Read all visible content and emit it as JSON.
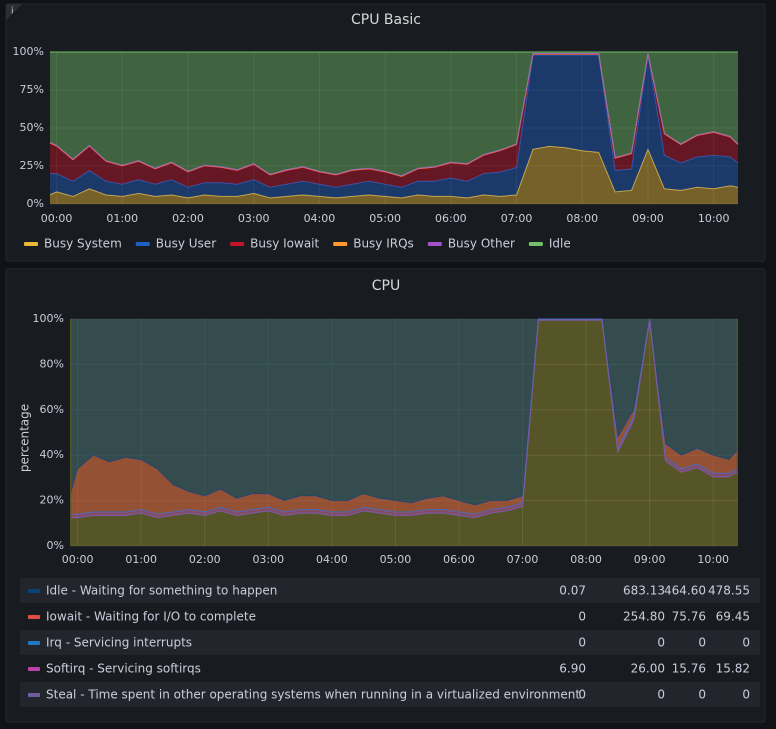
{
  "chart_data": [
    {
      "type": "area",
      "stacked": true,
      "stack_direction": "up",
      "title": "CPU Basic",
      "legend_position": "bottom",
      "x": [
        -0.1,
        0,
        0.25,
        0.5,
        0.75,
        1,
        1.25,
        1.5,
        1.75,
        2,
        2.25,
        2.5,
        2.75,
        3,
        3.25,
        3.5,
        3.75,
        4,
        4.25,
        4.5,
        4.75,
        5,
        5.25,
        5.5,
        5.75,
        6,
        6.25,
        6.5,
        6.75,
        7,
        7.25,
        7.5,
        7.75,
        8,
        8.25,
        8.5,
        8.75,
        9,
        9.25,
        9.5,
        9.75,
        10,
        10.25,
        10.37
      ],
      "xlim": [
        -0.1,
        10.37
      ],
      "xticks": [
        {
          "value": 0,
          "label": "00:00"
        },
        {
          "value": 1,
          "label": "01:00"
        },
        {
          "value": 2,
          "label": "02:00"
        },
        {
          "value": 3,
          "label": "03:00"
        },
        {
          "value": 4,
          "label": "04:00"
        },
        {
          "value": 5,
          "label": "05:00"
        },
        {
          "value": 6,
          "label": "06:00"
        },
        {
          "value": 7,
          "label": "07:00"
        },
        {
          "value": 8,
          "label": "08:00"
        },
        {
          "value": 9,
          "label": "09:00"
        },
        {
          "value": 10,
          "label": "10:00"
        }
      ],
      "ylim": [
        0,
        100
      ],
      "yticks": [
        {
          "value": 0,
          "label": "0%"
        },
        {
          "value": 25,
          "label": "25%"
        },
        {
          "value": 50,
          "label": "50%"
        },
        {
          "value": 75,
          "label": "75%"
        },
        {
          "value": 100,
          "label": "100%"
        }
      ],
      "grid": true,
      "series": [
        {
          "name": "Busy System",
          "color": "#eab839",
          "values": [
            6,
            8,
            5,
            10,
            6,
            5,
            7,
            5,
            6,
            4,
            6,
            5,
            5,
            7,
            4,
            5,
            6,
            5,
            4,
            5,
            6,
            5,
            4,
            6,
            5,
            5,
            4,
            6,
            5,
            6,
            36,
            38,
            37,
            35,
            34,
            8,
            9,
            36,
            10,
            9,
            11,
            10,
            12,
            11
          ]
        },
        {
          "name": "Busy User",
          "color": "#1f60c4",
          "values": [
            14,
            12,
            10,
            12,
            9,
            8,
            9,
            8,
            10,
            7,
            8,
            9,
            8,
            9,
            7,
            8,
            9,
            8,
            7,
            8,
            9,
            8,
            7,
            9,
            10,
            12,
            11,
            14,
            16,
            18,
            62,
            60,
            61,
            63,
            64,
            14,
            14,
            62,
            22,
            18,
            20,
            22,
            19,
            16
          ]
        },
        {
          "name": "Busy Iowait",
          "color": "#c4162a",
          "values": [
            20,
            18,
            14,
            16,
            13,
            12,
            12,
            10,
            11,
            10,
            11,
            10,
            9,
            10,
            8,
            9,
            9,
            8,
            8,
            9,
            8,
            8,
            7,
            8,
            9,
            10,
            11,
            12,
            14,
            15,
            0.5,
            0.5,
            0.5,
            0.5,
            0.5,
            8,
            10,
            0.5,
            14,
            12,
            14,
            15,
            13,
            12
          ]
        },
        {
          "name": "Busy IRQs",
          "color": "#ff9830",
          "values": [
            0.3,
            0.3,
            0.3,
            0.3,
            0.3,
            0.3,
            0.3,
            0.3,
            0.3,
            0.3,
            0.3,
            0.3,
            0.3,
            0.3,
            0.3,
            0.3,
            0.3,
            0.3,
            0.3,
            0.3,
            0.3,
            0.3,
            0.3,
            0.3,
            0.3,
            0.3,
            0.3,
            0.3,
            0.3,
            0.3,
            0.3,
            0.3,
            0.3,
            0.3,
            0.3,
            0.3,
            0.3,
            0.3,
            0.3,
            0.3,
            0.3,
            0.3,
            0.3,
            0.3
          ]
        },
        {
          "name": "Busy Other",
          "color": "#a352cc",
          "values": [
            0.2,
            0.2,
            0.2,
            0.2,
            0.2,
            0.2,
            0.2,
            0.2,
            0.2,
            0.2,
            0.2,
            0.2,
            0.2,
            0.2,
            0.2,
            0.2,
            0.2,
            0.2,
            0.2,
            0.2,
            0.2,
            0.2,
            0.2,
            0.2,
            0.2,
            0.2,
            0.2,
            0.2,
            0.2,
            0.2,
            0.2,
            0.2,
            0.2,
            0.2,
            0.2,
            0.2,
            0.2,
            0.2,
            0.2,
            0.2,
            0.2,
            0.2,
            0.2,
            0.2
          ]
        },
        {
          "name": "Idle",
          "color": "#73bf69",
          "values": [
            59.5,
            61.5,
            70.5,
            61.5,
            71.5,
            74.5,
            71.5,
            76.5,
            72.5,
            78.5,
            74.5,
            75.5,
            77.5,
            73.5,
            80.5,
            77.5,
            75.5,
            78.5,
            80.5,
            77.5,
            76.5,
            78.5,
            81.5,
            76.5,
            75.5,
            72.5,
            73.5,
            67.5,
            64.5,
            60.5,
            1,
            1,
            1,
            1,
            1,
            69.5,
            66.5,
            1,
            53.5,
            60.5,
            54.5,
            52.5,
            55.5,
            60.5
          ]
        }
      ]
    },
    {
      "type": "area",
      "stacked": true,
      "stack_direction": "down",
      "title": "CPU",
      "ylabel": "percentage",
      "legend_position": "bottom",
      "x": [
        -0.1,
        0,
        0.25,
        0.5,
        0.75,
        1,
        1.25,
        1.5,
        1.75,
        2,
        2.25,
        2.5,
        2.75,
        3,
        3.25,
        3.5,
        3.75,
        4,
        4.25,
        4.5,
        4.75,
        5,
        5.25,
        5.5,
        5.75,
        6,
        6.25,
        6.5,
        6.75,
        7,
        7.25,
        7.5,
        7.75,
        8,
        8.25,
        8.5,
        8.75,
        9,
        9.25,
        9.5,
        9.75,
        10,
        10.25,
        10.37
      ],
      "xlim": [
        -0.12,
        10.39
      ],
      "xticks": [
        {
          "value": 0,
          "label": "00:00"
        },
        {
          "value": 1,
          "label": "01:00"
        },
        {
          "value": 2,
          "label": "02:00"
        },
        {
          "value": 3,
          "label": "03:00"
        },
        {
          "value": 4,
          "label": "04:00"
        },
        {
          "value": 5,
          "label": "05:00"
        },
        {
          "value": 6,
          "label": "06:00"
        },
        {
          "value": 7,
          "label": "07:00"
        },
        {
          "value": 8,
          "label": "08:00"
        },
        {
          "value": 9,
          "label": "09:00"
        },
        {
          "value": 10,
          "label": "10:00"
        }
      ],
      "ylim": [
        0,
        100
      ],
      "yticks": [
        {
          "value": 0,
          "label": "0%"
        },
        {
          "value": 20,
          "label": "20%"
        },
        {
          "value": 40,
          "label": "40%"
        },
        {
          "value": 60,
          "label": "60%"
        },
        {
          "value": 80,
          "label": "80%"
        },
        {
          "value": 100,
          "label": "100%"
        }
      ],
      "grid": true,
      "series": [
        {
          "name": "Idle - Waiting for something to happen",
          "color": "#0a437c",
          "stats": [
            "0.07",
            "683.13",
            "464.60",
            "478.55"
          ],
          "values": [
            76,
            66,
            60,
            63,
            61,
            62,
            66,
            73,
            76,
            78,
            75,
            79,
            77,
            77,
            80,
            78,
            78,
            80,
            80,
            77,
            79,
            80,
            81,
            79,
            78,
            80,
            82,
            80,
            80,
            78,
            0,
            0,
            0,
            0,
            0,
            52,
            40,
            0,
            55,
            60,
            57,
            60,
            62,
            58
          ]
        },
        {
          "name": "Iowait - Waiting for I/O to complete",
          "color": "#e24d42",
          "stats": [
            "0",
            "254.80",
            "75.76",
            "69.45"
          ],
          "values": [
            10,
            20,
            25,
            22,
            24,
            22,
            20,
            12,
            8,
            7,
            8,
            6,
            7,
            6,
            5,
            6,
            6,
            5,
            5,
            6,
            5,
            5,
            4,
            5,
            6,
            5,
            4,
            4,
            3,
            3,
            0,
            0,
            0,
            0,
            0,
            5,
            3,
            0,
            6,
            6,
            7,
            8,
            6,
            8
          ]
        },
        {
          "name": "Irq - Servicing interrupts",
          "color": "#1f78c1",
          "stats": [
            "0",
            "0",
            "0",
            "0"
          ],
          "values": [
            0,
            0,
            0,
            0,
            0,
            0,
            0,
            0,
            0,
            0,
            0,
            0,
            0,
            0,
            0,
            0,
            0,
            0,
            0,
            0,
            0,
            0,
            0,
            0,
            0,
            0,
            0,
            0,
            0,
            0,
            0,
            0,
            0,
            0,
            0,
            0,
            0,
            0,
            0,
            0,
            0,
            0,
            0,
            0
          ]
        },
        {
          "name": "Softirq - Servicing softirqs",
          "color": "#ba43a9",
          "stats": [
            "6.90",
            "26.00",
            "15.76",
            "15.82"
          ],
          "values": [
            1.5,
            1.5,
            1.5,
            1.5,
            1.5,
            1.5,
            1.5,
            1.5,
            1.5,
            1.5,
            1.5,
            1.5,
            1.5,
            1.5,
            1.5,
            1.5,
            1.5,
            1.5,
            1.5,
            1.5,
            1.5,
            1.5,
            1.5,
            1.5,
            1.5,
            1.5,
            1.5,
            1.5,
            1.5,
            1.5,
            0.5,
            0.5,
            0.5,
            0.5,
            0.5,
            1.5,
            1.5,
            0.5,
            1.5,
            1.5,
            1.5,
            1.5,
            1.5,
            1.5
          ]
        },
        {
          "name": "Steal - Time spent in other operating systems when running in a virtualized environment",
          "color": "#705da0",
          "stats": [
            "0",
            "0",
            "0",
            "0"
          ],
          "values": [
            0,
            0,
            0,
            0,
            0,
            0,
            0,
            0,
            0,
            0,
            0,
            0,
            0,
            0,
            0,
            0,
            0,
            0,
            0,
            0,
            0,
            0,
            0,
            0,
            0,
            0,
            0,
            0,
            0,
            0,
            0,
            0,
            0,
            0,
            0,
            0,
            0,
            0,
            0,
            0,
            0,
            0,
            0,
            0
          ]
        }
      ]
    }
  ]
}
